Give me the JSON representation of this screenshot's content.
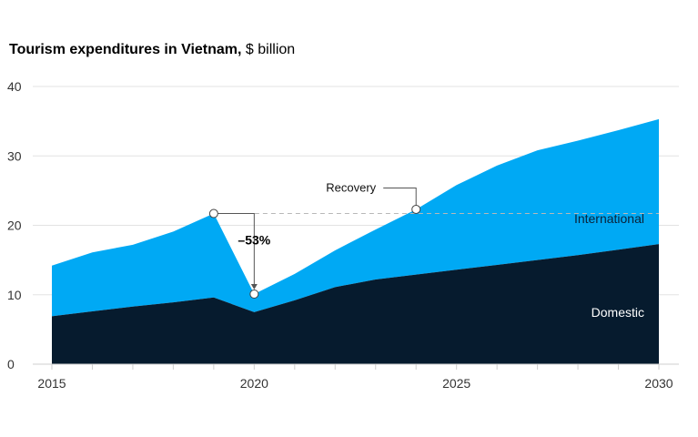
{
  "title": {
    "bold": "Tourism expenditures in Vietnam,",
    "unit": " $ billion"
  },
  "colors": {
    "domestic": "#061b2e",
    "international": "#00a9f4",
    "grid": "#e3e3e3",
    "reference_line": "#b8b8b8",
    "annotation_line": "#555555"
  },
  "chart_data": {
    "type": "area",
    "stacked": true,
    "x": [
      2015,
      2016,
      2017,
      2018,
      2019,
      2020,
      2021,
      2022,
      2023,
      2024,
      2025,
      2026,
      2027,
      2028,
      2029,
      2030
    ],
    "series": [
      {
        "name": "Domestic",
        "values": [
          6.9,
          7.6,
          8.3,
          8.9,
          9.6,
          7.5,
          9.2,
          11.1,
          12.2,
          12.9,
          13.6,
          14.3,
          15.0,
          15.7,
          16.5,
          17.3
        ]
      },
      {
        "name": "International",
        "values": [
          7.3,
          8.5,
          8.9,
          10.2,
          12.1,
          2.6,
          3.8,
          5.3,
          7.2,
          9.4,
          12.2,
          14.3,
          15.8,
          16.5,
          17.2,
          18.0
        ]
      }
    ],
    "xticks": [
      "2015",
      "2020",
      "2025",
      "2030"
    ],
    "yticks": [
      "0",
      "10",
      "20",
      "30",
      "40"
    ],
    "xlim": [
      2015,
      2030
    ],
    "ylim": [
      0,
      40
    ],
    "grid": "horizontal",
    "annotations": {
      "drop_label": "–53%",
      "drop_from_year": 2019,
      "drop_to_year": 2020,
      "recovery_label": "Recovery",
      "recovery_year": 2024,
      "reference_value": 21.7
    },
    "series_labels": [
      "International",
      "Domestic"
    ]
  }
}
